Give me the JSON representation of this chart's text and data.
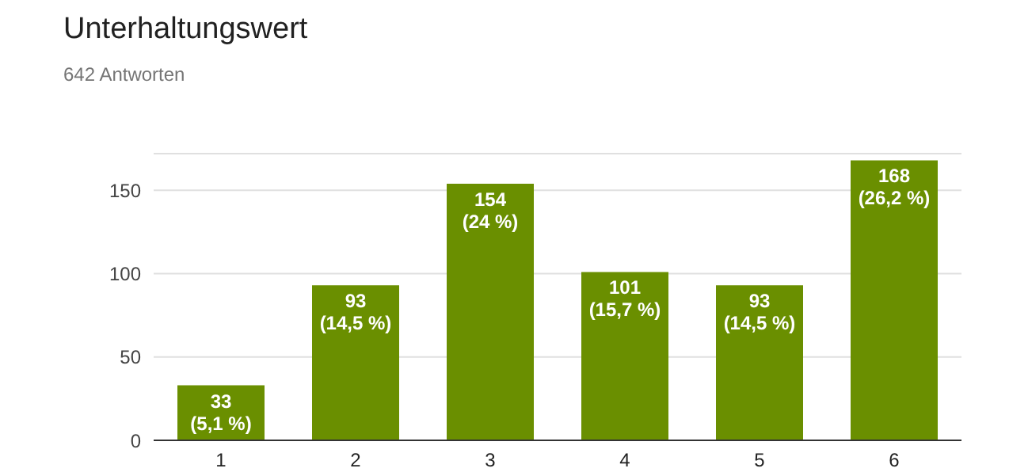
{
  "chart_data": {
    "type": "bar",
    "title": "Unterhaltungswert",
    "subtitle": "642 Antworten",
    "categories": [
      "1",
      "2",
      "3",
      "4",
      "5",
      "6"
    ],
    "values": [
      33,
      93,
      154,
      101,
      93,
      168
    ],
    "value_labels": [
      "33\n(5,1 %)",
      "93\n(14,5 %)",
      "154\n(24 %)",
      "101\n(15,7 %)",
      "93\n(14,5 %)",
      "168\n(26,2 %)"
    ],
    "color": "#6a8f00",
    "ylim": [
      0,
      172
    ],
    "yticks": [
      0,
      50,
      100,
      150
    ],
    "grid": "y"
  }
}
